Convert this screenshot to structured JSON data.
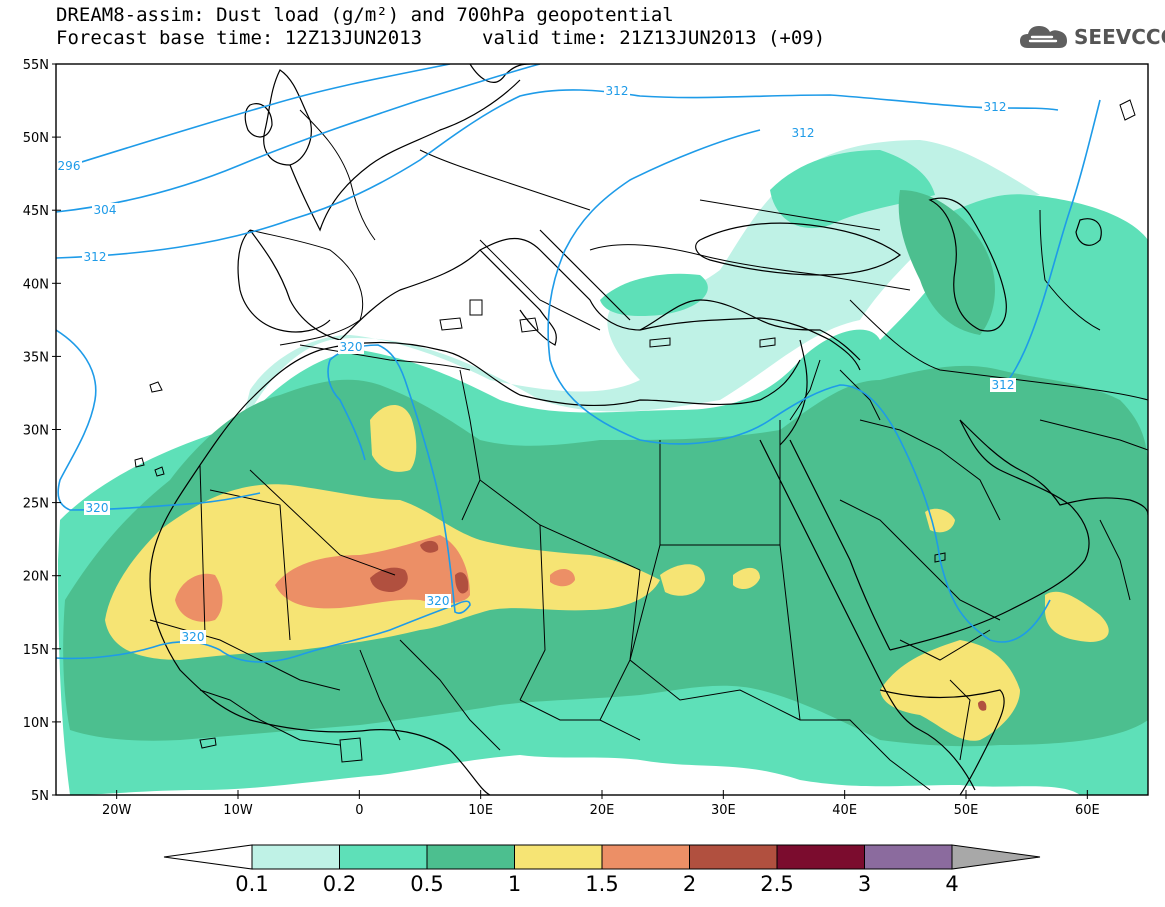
{
  "header": {
    "title_line1": "DREAM8-assim: Dust load (g/m²) and 700hPa geopotential",
    "title_line2_left": "Forecast base time: 12Z13JUN2013",
    "title_line2_right": "valid time: 21Z13JUN2013 (+09)",
    "logo_text": "SEEVCCC",
    "logo_icon": "cloud-logo-icon"
  },
  "map": {
    "lon_range": [
      -25,
      65
    ],
    "lat_range": [
      5,
      55
    ],
    "lat_ticks": [
      "55N",
      "50N",
      "45N",
      "40N",
      "35N",
      "30N",
      "25N",
      "20N",
      "15N",
      "10N",
      "5N"
    ],
    "lon_ticks": [
      "20W",
      "10W",
      "0",
      "10E",
      "20E",
      "30E",
      "40E",
      "50E",
      "60E"
    ],
    "contour_color": "#1e9be8",
    "contour_labels": [
      "296",
      "304",
      "312",
      "312",
      "312",
      "312",
      "312",
      "320",
      "320",
      "320",
      "320"
    ]
  },
  "legend": {
    "labels": [
      "0.1",
      "0.2",
      "0.5",
      "1",
      "1.5",
      "2",
      "2.5",
      "3",
      "4"
    ],
    "colors": [
      "#ffffff",
      "#bff2e6",
      "#5ee0b8",
      "#4cbf8f",
      "#f6e474",
      "#ec8f66",
      "#b1503f",
      "#7b0c2e",
      "#8b6b9e",
      "#a8a8a8"
    ]
  }
}
